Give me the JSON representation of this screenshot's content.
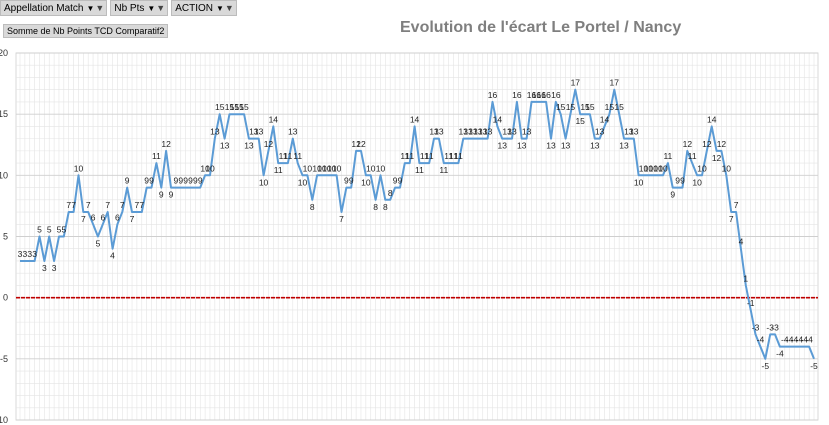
{
  "filters": [
    {
      "label": "Appellation Match",
      "arrow_icon": "dropdown-arrow-icon",
      "funnel_icon": "filter-funnel-icon"
    },
    {
      "label": "Nb Pts",
      "arrow_icon": "dropdown-arrow-icon",
      "funnel_icon": "filter-funnel-icon"
    },
    {
      "label": "ACTION",
      "arrow_icon": "dropdown-arrow-icon",
      "funnel_icon": "filter-funnel-icon"
    }
  ],
  "field_tag": "Somme de Nb Points TCD Comparatif2",
  "chart_data": {
    "type": "line",
    "title": "Evolution de l'écart Le Portel / Nancy",
    "xlabel": "",
    "ylabel": "",
    "ylim": [
      -10,
      20
    ],
    "yticks": [
      -10,
      -5,
      0,
      5,
      10,
      15,
      20
    ],
    "ytick_labels": [
      "-10",
      "-5",
      "0",
      "5",
      "10",
      "15",
      "20"
    ],
    "grid": true,
    "reference_line": {
      "y": 0,
      "color": "#c00000"
    },
    "series_color": "#5b9bd5",
    "series": [
      {
        "values": [
          3,
          3,
          3,
          3,
          5,
          3,
          5,
          3,
          5,
          5,
          7,
          7,
          10,
          7,
          7,
          6,
          5,
          6,
          7,
          4,
          6,
          7,
          9,
          7,
          7,
          7,
          9,
          9,
          11,
          9,
          12,
          9,
          9,
          9,
          9,
          9,
          9,
          9,
          10,
          10,
          13,
          15,
          13,
          15,
          15,
          15,
          15,
          13,
          13,
          13,
          10,
          12,
          14,
          11,
          11,
          11,
          13,
          11,
          10,
          10,
          8,
          10,
          10,
          10,
          10,
          10,
          7,
          9,
          9,
          12,
          12,
          10,
          10,
          8,
          10,
          8,
          8,
          9,
          9,
          11,
          11,
          14,
          11,
          11,
          11,
          13,
          13,
          11,
          11,
          11,
          11,
          13,
          13,
          13,
          13,
          13,
          13,
          16,
          14,
          13,
          13,
          13,
          16,
          13,
          13,
          16,
          16,
          16,
          16,
          13,
          16,
          15,
          13,
          15,
          17,
          15,
          15,
          15,
          13,
          13,
          14,
          15,
          17,
          15,
          13,
          13,
          13,
          10,
          10,
          10,
          10,
          10,
          10,
          11,
          9,
          9,
          9,
          12,
          11,
          10,
          10,
          12,
          14,
          12,
          12,
          10,
          7,
          7,
          4,
          1,
          -1,
          -3,
          -4,
          -5,
          -3,
          -3,
          -4,
          -4,
          -4,
          -4,
          -4,
          -4,
          -4,
          -5
        ]
      }
    ]
  }
}
